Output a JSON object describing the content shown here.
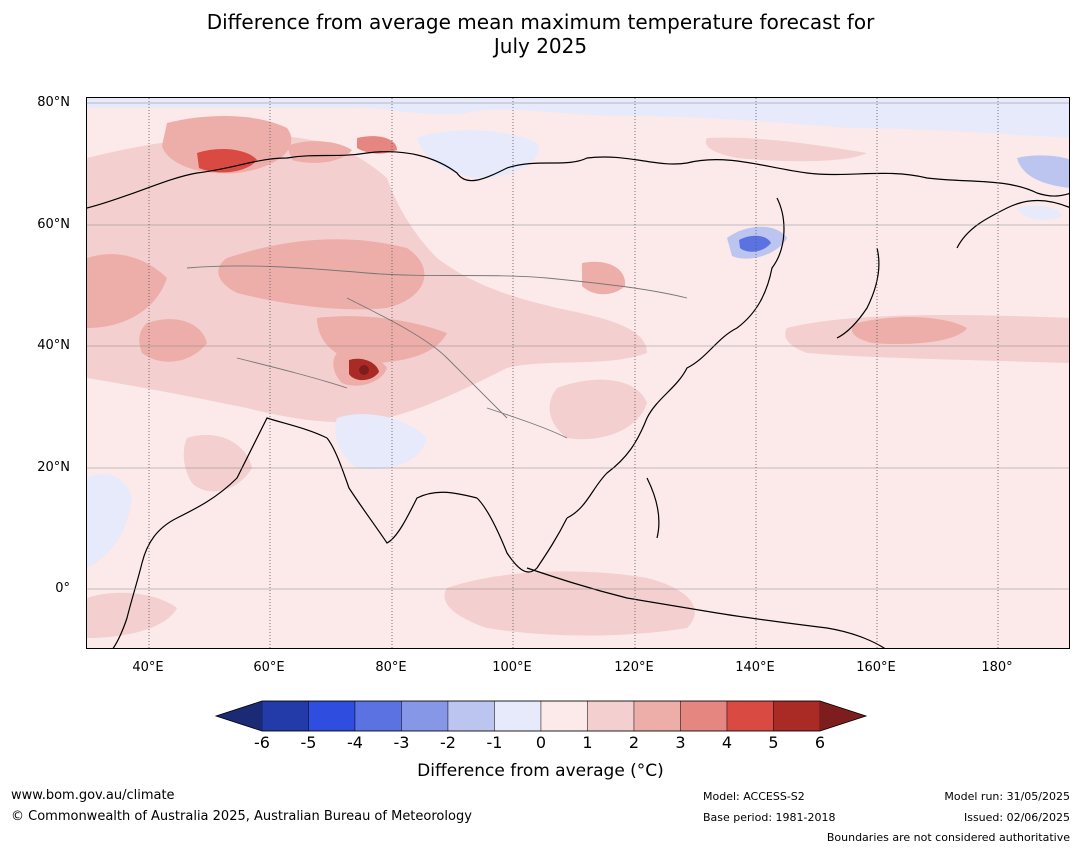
{
  "title_line1": "Difference from average mean maximum temperature forecast for",
  "title_line2": "July 2025",
  "lat_labels": [
    "80°N",
    "60°N",
    "40°N",
    "20°N",
    "0°"
  ],
  "lon_labels": [
    "40°E",
    "60°E",
    "80°E",
    "100°E",
    "120°E",
    "140°E",
    "160°E",
    "180°"
  ],
  "colorbar": {
    "ticks": [
      "-6",
      "-5",
      "-4",
      "-3",
      "-2",
      "-1",
      "0",
      "1",
      "2",
      "3",
      "4",
      "5",
      "6"
    ],
    "colors": [
      "#233aa9",
      "#2f4ddf",
      "#5b72e2",
      "#8797e8",
      "#bcc5f0",
      "#e7eafb",
      "#fceaea",
      "#f4cfcf",
      "#edaea9",
      "#e68680",
      "#d94a43",
      "#aa2b26"
    ],
    "under_color": "#1b2a75",
    "over_color": "#7e1d1d",
    "label": "Difference from average (°C)"
  },
  "footer": {
    "url": "www.bom.gov.au/climate",
    "copyright": "© Commonwealth of Australia 2025, Australian Bureau of Meteorology",
    "model": "Model: ACCESS-S2",
    "base_period": "Base period: 1981-2018",
    "model_run": "Model run: 31/05/2025",
    "issued": "Issued: 02/06/2025",
    "disclaimer": "Boundaries are not considered authoritative"
  }
}
